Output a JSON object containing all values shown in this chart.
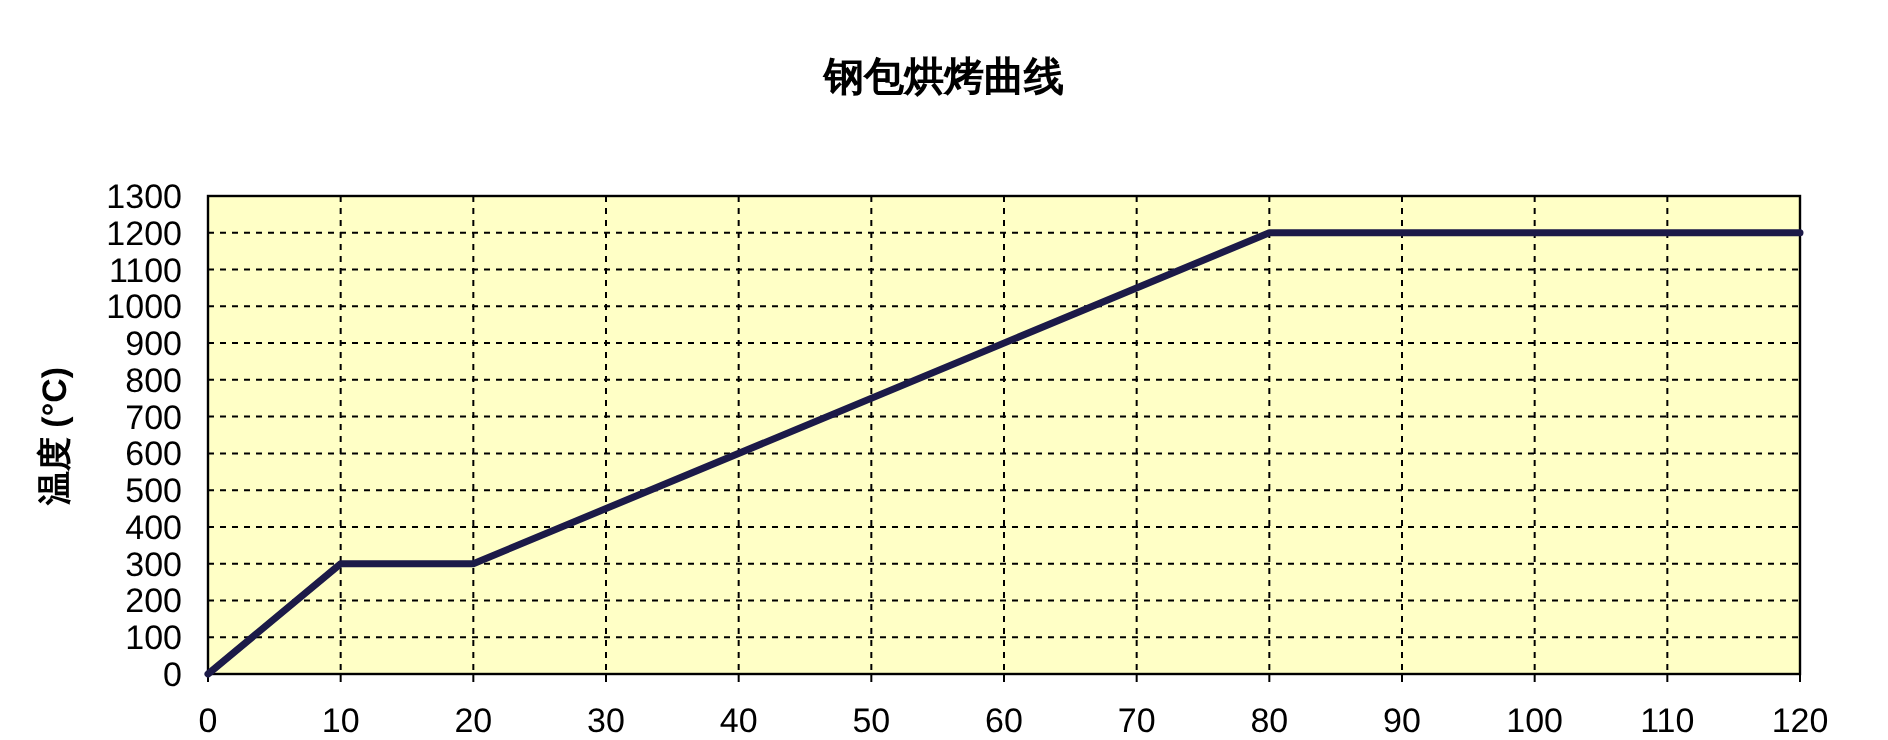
{
  "chart_data": {
    "type": "line",
    "title": "钢包烘烤曲线",
    "ylabel": "温度 (°C)",
    "x": [
      0,
      10,
      20,
      80,
      120
    ],
    "series": [
      {
        "color": "#1c1a48",
        "values": [
          0,
          300,
          300,
          1200,
          1200
        ]
      }
    ],
    "xlim": [
      0,
      120
    ],
    "xticks": [
      0,
      10,
      20,
      30,
      40,
      50,
      60,
      70,
      80,
      90,
      100,
      110,
      120
    ],
    "ylim": [
      0,
      1300
    ],
    "yticks": [
      0,
      100,
      200,
      300,
      400,
      500,
      600,
      700,
      800,
      900,
      1000,
      1100,
      1200,
      1300
    ],
    "grid": true,
    "marker": "none",
    "line_style": "solid"
  }
}
